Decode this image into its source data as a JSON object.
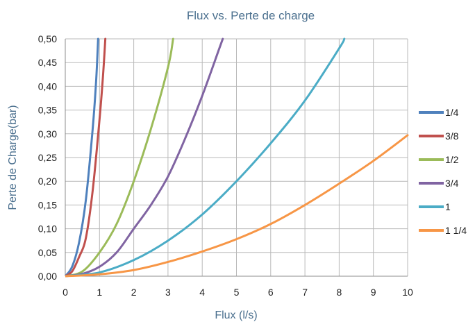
{
  "chart_data": {
    "type": "line",
    "title": "Flux vs. Perte de charge",
    "xlabel": "Flux (l/s)",
    "ylabel": "Perte de Charge(bar)",
    "xlim": [
      0,
      10
    ],
    "ylim": [
      0,
      0.5
    ],
    "x_ticks": [
      "0",
      "1",
      "2",
      "3",
      "4",
      "5",
      "6",
      "7",
      "8",
      "9",
      "10"
    ],
    "y_ticks": [
      "0,00",
      "0,05",
      "0,10",
      "0,15",
      "0,20",
      "0,25",
      "0,30",
      "0,35",
      "0,40",
      "0,45",
      "0,50"
    ],
    "grid": true,
    "legend_position": "right",
    "series": [
      {
        "name": "1/4",
        "color": "#4f81bd",
        "points": [
          [
            0,
            0
          ],
          [
            0.2,
            0.02
          ],
          [
            0.4,
            0.07
          ],
          [
            0.6,
            0.16
          ],
          [
            0.8,
            0.31
          ],
          [
            0.9,
            0.41
          ],
          [
            0.96,
            0.5
          ]
        ]
      },
      {
        "name": "3/8",
        "color": "#c0504d",
        "points": [
          [
            0,
            0
          ],
          [
            0.2,
            0.01
          ],
          [
            0.4,
            0.04
          ],
          [
            0.6,
            0.08
          ],
          [
            0.8,
            0.18
          ],
          [
            1.0,
            0.33
          ],
          [
            1.1,
            0.42
          ],
          [
            1.17,
            0.5
          ]
        ]
      },
      {
        "name": "1/2",
        "color": "#9bbb59",
        "points": [
          [
            0,
            0
          ],
          [
            0.5,
            0.01
          ],
          [
            1.0,
            0.05
          ],
          [
            1.5,
            0.11
          ],
          [
            2.0,
            0.2
          ],
          [
            2.5,
            0.31
          ],
          [
            3.0,
            0.44
          ],
          [
            3.15,
            0.5
          ]
        ]
      },
      {
        "name": "3/4",
        "color": "#8064a2",
        "points": [
          [
            0,
            0
          ],
          [
            0.5,
            0.005
          ],
          [
            1.0,
            0.02
          ],
          [
            1.5,
            0.05
          ],
          [
            2.0,
            0.1
          ],
          [
            2.5,
            0.15
          ],
          [
            3.0,
            0.21
          ],
          [
            3.5,
            0.29
          ],
          [
            4.0,
            0.38
          ],
          [
            4.5,
            0.48
          ],
          [
            4.6,
            0.5
          ]
        ]
      },
      {
        "name": "1",
        "color": "#4bacc6",
        "points": [
          [
            0,
            0
          ],
          [
            1.0,
            0.008
          ],
          [
            2.0,
            0.034
          ],
          [
            3.0,
            0.075
          ],
          [
            4.0,
            0.13
          ],
          [
            5.0,
            0.2
          ],
          [
            6.0,
            0.28
          ],
          [
            7.0,
            0.37
          ],
          [
            8.0,
            0.48
          ],
          [
            8.15,
            0.5
          ]
        ]
      },
      {
        "name": "1 1/4",
        "color": "#f79646",
        "points": [
          [
            0,
            0
          ],
          [
            1.0,
            0.004
          ],
          [
            2.0,
            0.013
          ],
          [
            3.0,
            0.03
          ],
          [
            4.0,
            0.052
          ],
          [
            5.0,
            0.078
          ],
          [
            6.0,
            0.11
          ],
          [
            7.0,
            0.15
          ],
          [
            8.0,
            0.195
          ],
          [
            9.0,
            0.243
          ],
          [
            10.0,
            0.297
          ]
        ]
      }
    ]
  }
}
